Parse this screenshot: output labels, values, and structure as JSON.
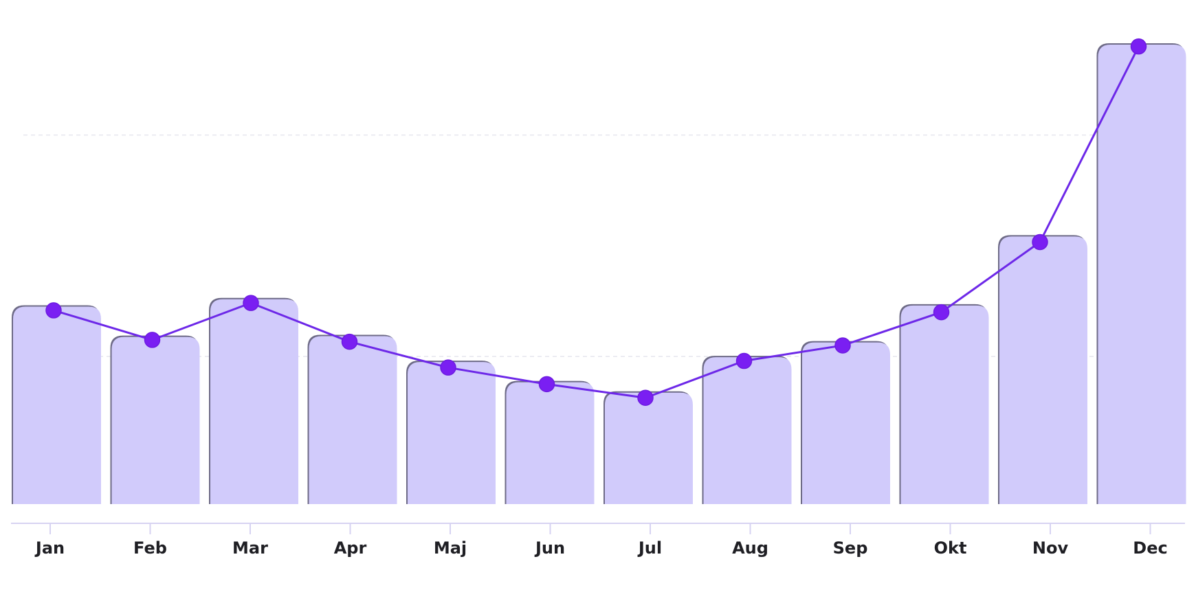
{
  "chart_data": {
    "type": "bar",
    "categories": [
      "Jan",
      "Feb",
      "Mar",
      "Apr",
      "Maj",
      "Jun",
      "Jul",
      "Aug",
      "Sep",
      "Okt",
      "Nov",
      "Dec"
    ],
    "series": [
      {
        "type": "bar",
        "values": [
          53.5,
          45.3,
          55.5,
          45.5,
          38.5,
          33.0,
          30.2,
          39.8,
          43.8,
          53.8,
          72.5,
          124.5
        ]
      },
      {
        "type": "line",
        "values": [
          52.5,
          44.5,
          54.5,
          44.0,
          37.0,
          32.5,
          28.8,
          38.8,
          43.0,
          52.0,
          71.0,
          124.0
        ]
      }
    ],
    "title": "",
    "xlabel": "",
    "ylabel": "",
    "ylim": [
      0,
      124.5
    ],
    "grid": true,
    "legend": "none",
    "colors": {
      "bar": "#d1cbfb",
      "line": "#6d28e8",
      "point": "#7a1ff2",
      "axis": "#d7d3f2",
      "grid": "#e6e6ee",
      "text": "#1f1f24"
    }
  }
}
